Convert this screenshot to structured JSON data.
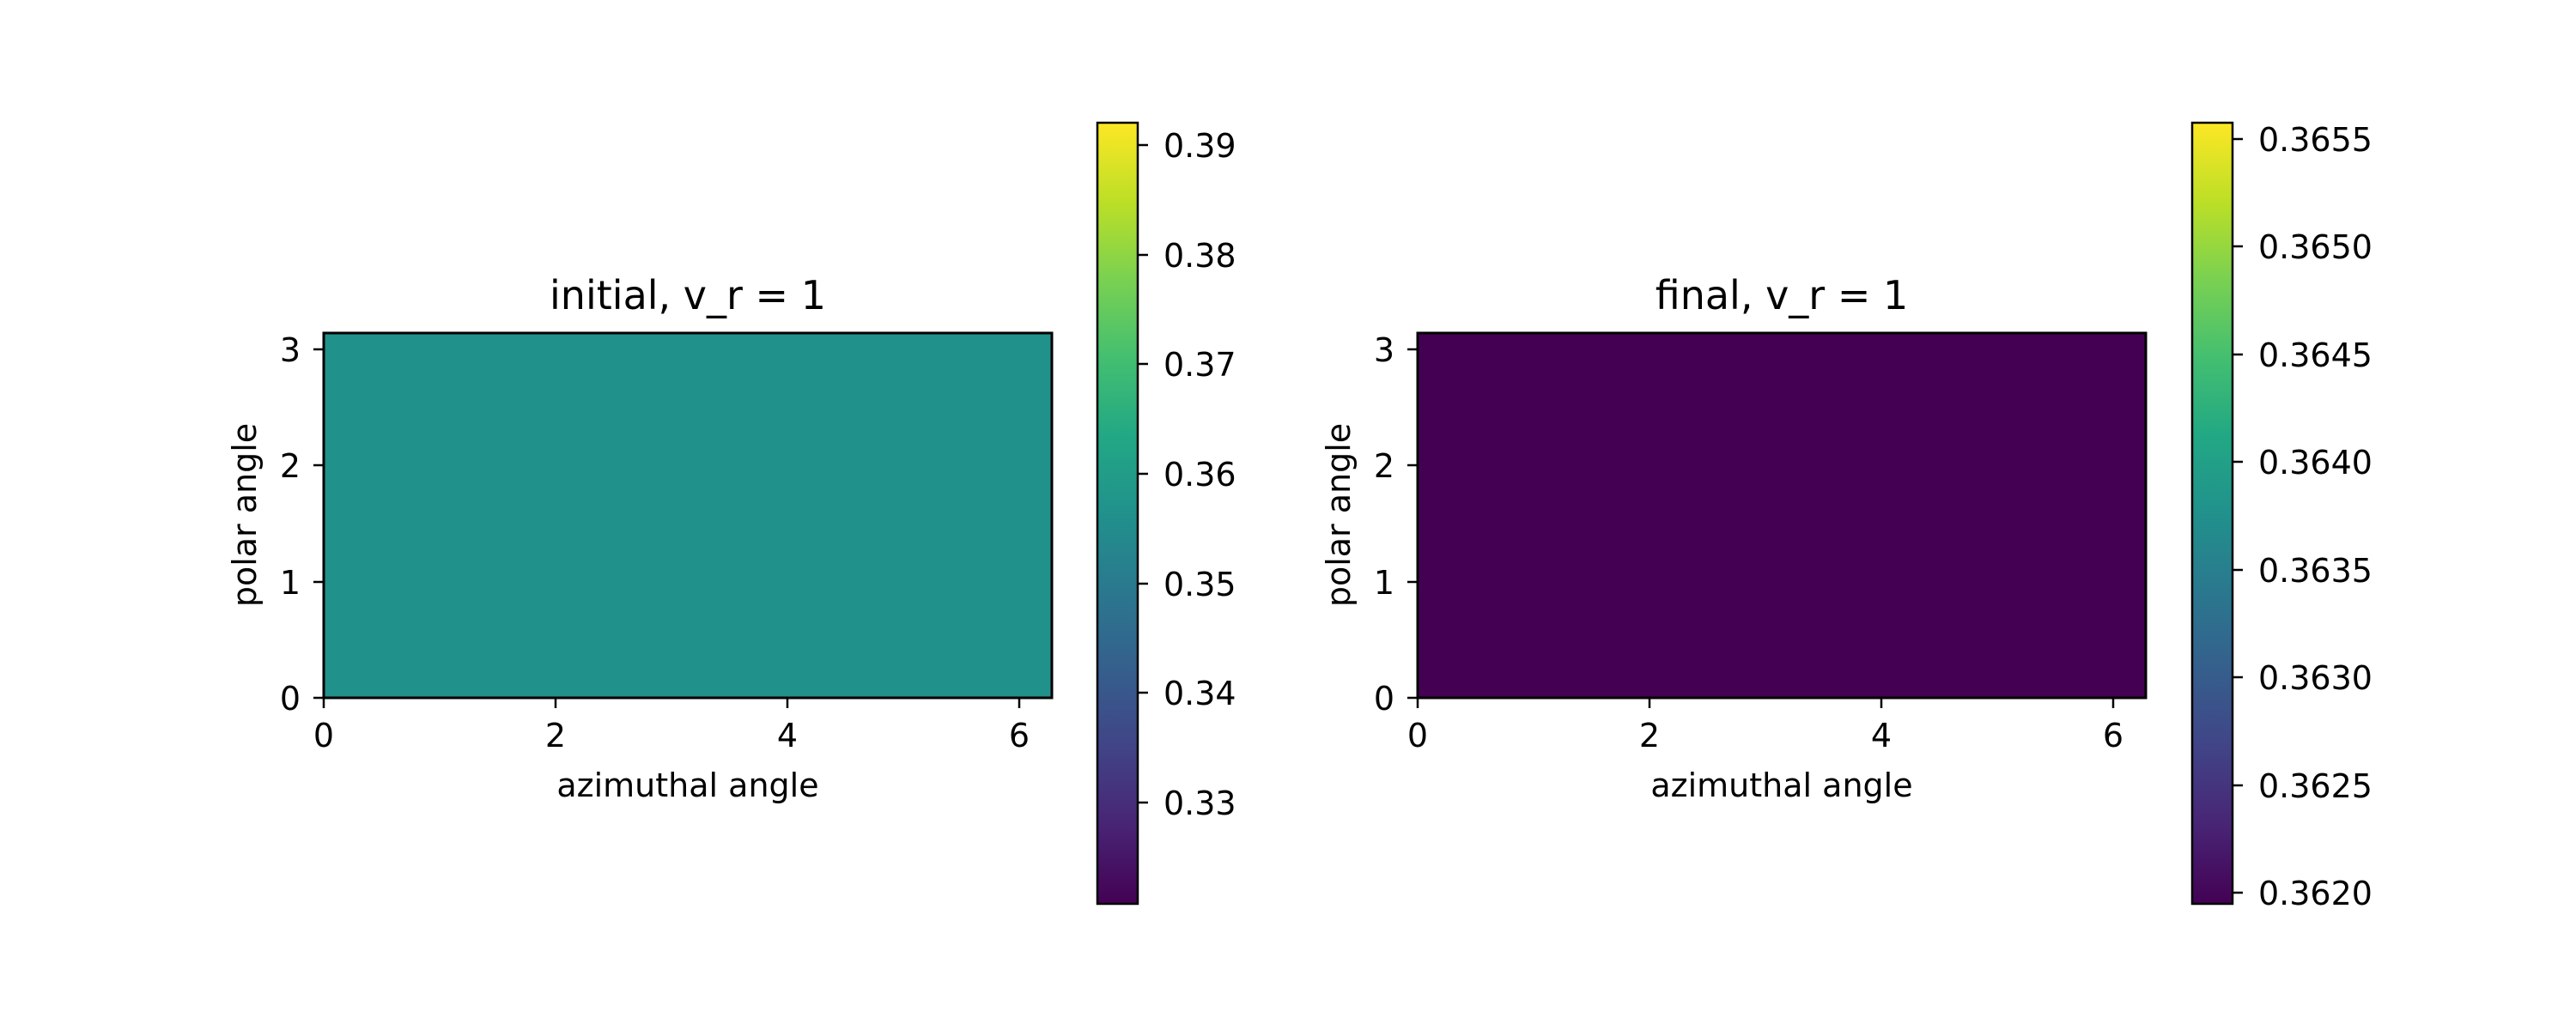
{
  "chart_data": [
    {
      "type": "heatmap",
      "title": "initial, v_r = 1",
      "xlabel": "azimuthal angle",
      "ylabel": "polar angle",
      "xlim": [
        0,
        6.283
      ],
      "ylim": [
        0,
        3.1416
      ],
      "xticks": [
        "0",
        "2",
        "4",
        "6"
      ],
      "yticks": [
        "0",
        "1",
        "2",
        "3"
      ],
      "grid": false,
      "colormap": "viridis",
      "field_value": 0.3565,
      "field_color": "#21918c",
      "colorbar": {
        "range": [
          0.3205,
          0.392
        ],
        "ticks": [
          "0.33",
          "0.34",
          "0.35",
          "0.36",
          "0.37",
          "0.38",
          "0.39"
        ]
      }
    },
    {
      "type": "heatmap",
      "title": "final, v_r = 1",
      "xlabel": "azimuthal angle",
      "ylabel": "polar angle",
      "xlim": [
        0,
        6.283
      ],
      "ylim": [
        0,
        3.1416
      ],
      "xticks": [
        "0",
        "2",
        "4",
        "6"
      ],
      "yticks": [
        "0",
        "1",
        "2",
        "3"
      ],
      "grid": false,
      "colormap": "viridis",
      "field_value": 0.362,
      "field_color": "#440154",
      "colorbar": {
        "range": [
          0.36195,
          0.36558
        ],
        "ticks": [
          "0.3620",
          "0.3625",
          "0.3630",
          "0.3635",
          "0.3640",
          "0.3645",
          "0.3650",
          "0.3655"
        ]
      }
    }
  ]
}
